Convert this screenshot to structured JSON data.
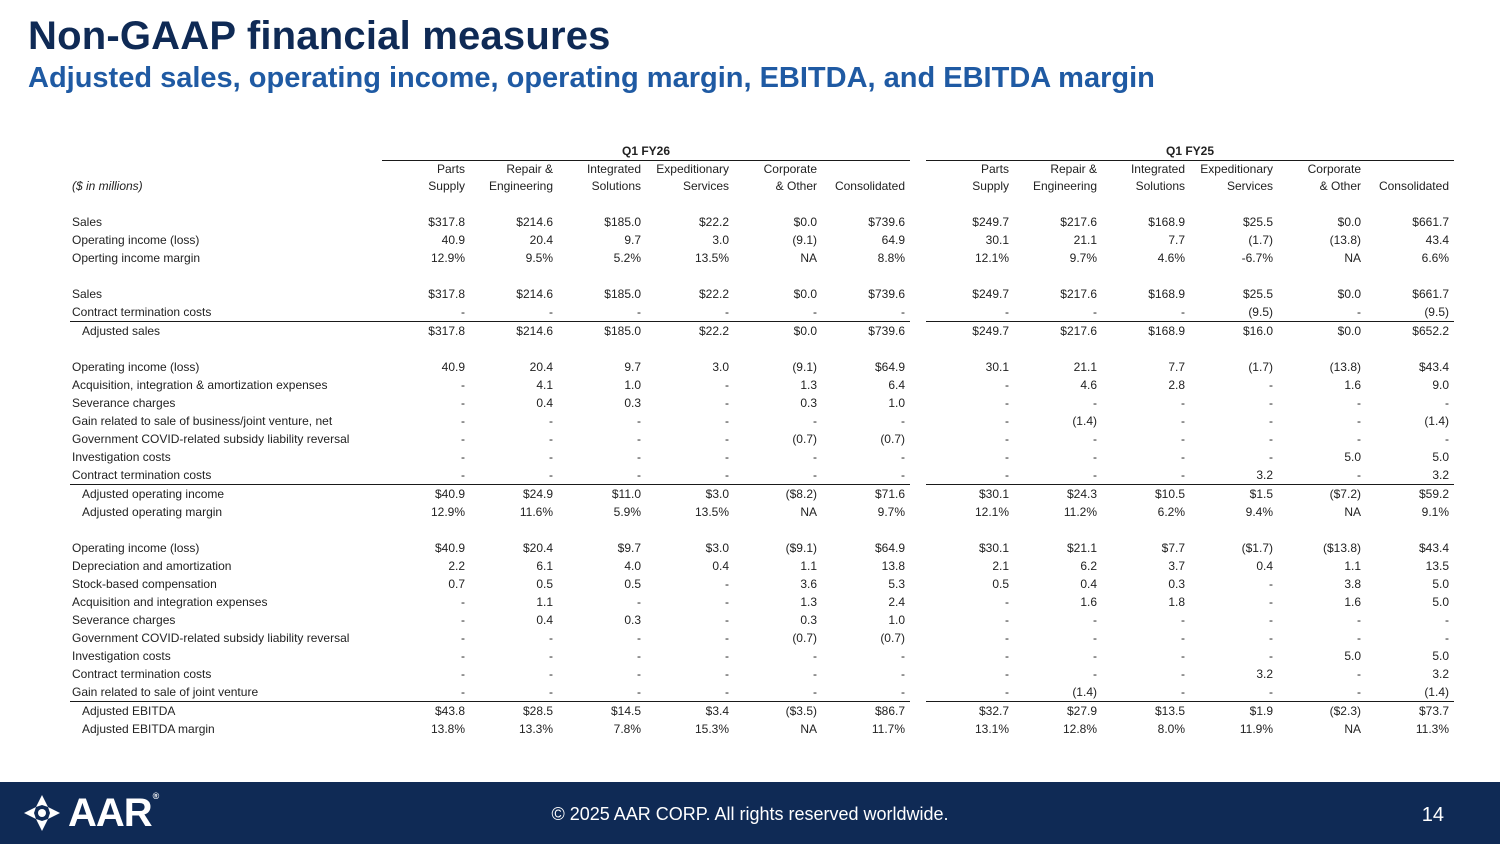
{
  "slide": {
    "title": "Non-GAAP financial measures",
    "subtitle": "Adjusted sales, operating income, operating margin, EBITDA, and EBITDA margin"
  },
  "table": {
    "periods": [
      "Q1 FY26",
      "Q1 FY25"
    ],
    "units": "($ in millions)",
    "col_line1": [
      "Parts",
      "Repair &",
      "Integrated",
      "Expeditionary",
      "Corporate",
      ""
    ],
    "col_line2": [
      "Supply",
      "Engineering",
      "Solutions",
      "Services",
      "& Other",
      "Consolidated"
    ],
    "rows": [
      {
        "label": "Sales",
        "values": [
          "$317.8",
          "$214.6",
          "$185.0",
          "$22.2",
          "$0.0",
          "$739.6",
          "$249.7",
          "$217.6",
          "$168.9",
          "$25.5",
          "$0.0",
          "$661.7"
        ]
      },
      {
        "label": "Operating income (loss)",
        "values": [
          "40.9",
          "20.4",
          "9.7",
          "3.0",
          "(9.1)",
          "64.9",
          "30.1",
          "21.1",
          "7.7",
          "(1.7)",
          "(13.8)",
          "43.4"
        ]
      },
      {
        "label": "Operting income margin",
        "values": [
          "12.9%",
          "9.5%",
          "5.2%",
          "13.5%",
          "NA",
          "8.8%",
          "12.1%",
          "9.7%",
          "4.6%",
          "-6.7%",
          "NA",
          "6.6%"
        ]
      },
      {
        "label": "Sales",
        "values": [
          "$317.8",
          "$214.6",
          "$185.0",
          "$22.2",
          "$0.0",
          "$739.6",
          "$249.7",
          "$217.6",
          "$168.9",
          "$25.5",
          "$0.0",
          "$661.7"
        ]
      },
      {
        "label": "Contract termination costs",
        "values": [
          "-",
          "-",
          "-",
          "-",
          "-",
          "-",
          "-",
          "-",
          "-",
          "(9.5)",
          "-",
          "(9.5)"
        ]
      },
      {
        "label": "Adjusted sales",
        "values": [
          "$317.8",
          "$214.6",
          "$185.0",
          "$22.2",
          "$0.0",
          "$739.6",
          "$249.7",
          "$217.6",
          "$168.9",
          "$16.0",
          "$0.0",
          "$652.2"
        ]
      },
      {
        "label": "Operating income (loss)",
        "values": [
          "40.9",
          "20.4",
          "9.7",
          "3.0",
          "(9.1)",
          "$64.9",
          "30.1",
          "21.1",
          "7.7",
          "(1.7)",
          "(13.8)",
          "$43.4"
        ]
      },
      {
        "label": "Acquisition, integration & amortization expenses",
        "values": [
          "-",
          "4.1",
          "1.0",
          "-",
          "1.3",
          "6.4",
          "-",
          "4.6",
          "2.8",
          "-",
          "1.6",
          "9.0"
        ]
      },
      {
        "label": "Severance charges",
        "values": [
          "-",
          "0.4",
          "0.3",
          "-",
          "0.3",
          "1.0",
          "-",
          "-",
          "-",
          "-",
          "-",
          "-"
        ]
      },
      {
        "label": "Gain related to sale of business/joint venture, net",
        "values": [
          "-",
          "-",
          "-",
          "-",
          "-",
          "-",
          "-",
          "(1.4)",
          "-",
          "-",
          "-",
          "(1.4)"
        ]
      },
      {
        "label": "Government COVID-related subsidy liability reversal",
        "values": [
          "-",
          "-",
          "-",
          "-",
          "(0.7)",
          "(0.7)",
          "-",
          "-",
          "-",
          "-",
          "-",
          "-"
        ]
      },
      {
        "label": "Investigation costs",
        "values": [
          "-",
          "-",
          "-",
          "-",
          "-",
          "-",
          "-",
          "-",
          "-",
          "-",
          "5.0",
          "5.0"
        ]
      },
      {
        "label": "Contract termination costs",
        "values": [
          "-",
          "-",
          "-",
          "-",
          "-",
          "-",
          "-",
          "-",
          "-",
          "3.2",
          "-",
          "3.2"
        ]
      },
      {
        "label": "Adjusted operating income",
        "values": [
          "$40.9",
          "$24.9",
          "$11.0",
          "$3.0",
          "($8.2)",
          "$71.6",
          "$30.1",
          "$24.3",
          "$10.5",
          "$1.5",
          "($7.2)",
          "$59.2"
        ]
      },
      {
        "label": "Adjusted operating margin",
        "values": [
          "12.9%",
          "11.6%",
          "5.9%",
          "13.5%",
          "NA",
          "9.7%",
          "12.1%",
          "11.2%",
          "6.2%",
          "9.4%",
          "NA",
          "9.1%"
        ]
      },
      {
        "label": "Operating income (loss)",
        "values": [
          "$40.9",
          "$20.4",
          "$9.7",
          "$3.0",
          "($9.1)",
          "$64.9",
          "$30.1",
          "$21.1",
          "$7.7",
          "($1.7)",
          "($13.8)",
          "$43.4"
        ]
      },
      {
        "label": "Depreciation and amortization",
        "values": [
          "2.2",
          "6.1",
          "4.0",
          "0.4",
          "1.1",
          "13.8",
          "2.1",
          "6.2",
          "3.7",
          "0.4",
          "1.1",
          "13.5"
        ]
      },
      {
        "label": "Stock-based compensation",
        "values": [
          "0.7",
          "0.5",
          "0.5",
          "-",
          "3.6",
          "5.3",
          "0.5",
          "0.4",
          "0.3",
          "-",
          "3.8",
          "5.0"
        ]
      },
      {
        "label": "Acquisition and integration expenses",
        "values": [
          "-",
          "1.1",
          "-",
          "-",
          "1.3",
          "2.4",
          "-",
          "1.6",
          "1.8",
          "-",
          "1.6",
          "5.0"
        ]
      },
      {
        "label": "Severance charges",
        "values": [
          "-",
          "0.4",
          "0.3",
          "-",
          "0.3",
          "1.0",
          "-",
          "-",
          "-",
          "-",
          "-",
          "-"
        ]
      },
      {
        "label": "Government COVID-related subsidy liability reversal",
        "values": [
          "-",
          "-",
          "-",
          "-",
          "(0.7)",
          "(0.7)",
          "-",
          "-",
          "-",
          "-",
          "-",
          "-"
        ]
      },
      {
        "label": "Investigation costs",
        "values": [
          "-",
          "-",
          "-",
          "-",
          "-",
          "-",
          "-",
          "-",
          "-",
          "-",
          "5.0",
          "5.0"
        ]
      },
      {
        "label": "Contract termination costs",
        "values": [
          "-",
          "-",
          "-",
          "-",
          "-",
          "-",
          "-",
          "-",
          "-",
          "3.2",
          "-",
          "3.2"
        ]
      },
      {
        "label": "Gain related to sale of joint venture",
        "values": [
          "-",
          "-",
          "-",
          "-",
          "-",
          "-",
          "-",
          "(1.4)",
          "-",
          "-",
          "-",
          "(1.4)"
        ]
      },
      {
        "label": "Adjusted EBITDA",
        "values": [
          "$43.8",
          "$28.5",
          "$14.5",
          "$3.4",
          "($3.5)",
          "$86.7",
          "$32.7",
          "$27.9",
          "$13.5",
          "$1.9",
          "($2.3)",
          "$73.7"
        ]
      },
      {
        "label": "Adjusted EBITDA margin",
        "values": [
          "13.8%",
          "13.3%",
          "7.8%",
          "15.3%",
          "NA",
          "11.7%",
          "13.1%",
          "12.8%",
          "8.0%",
          "11.9%",
          "NA",
          "11.3%"
        ]
      }
    ]
  },
  "footer": {
    "logo_text": "AAR",
    "logo_mark": "®",
    "copyright": "© 2025 AAR CORP. All rights reserved worldwide.",
    "page_number": "14"
  },
  "colors": {
    "title": "#0f2a55",
    "subtitle": "#1f5aa3",
    "footer_bg": "#0f2a55"
  }
}
